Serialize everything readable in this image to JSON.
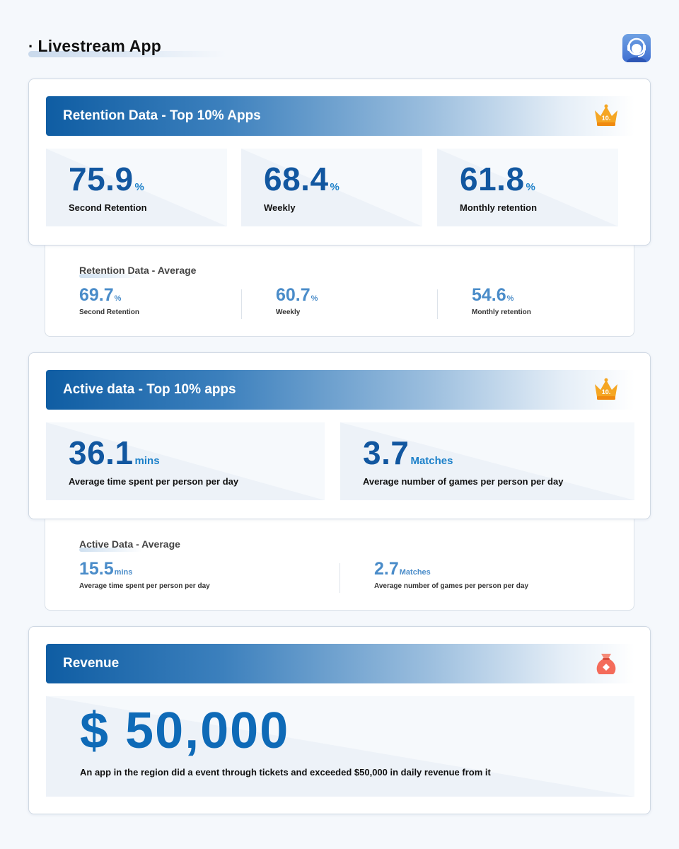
{
  "page": {
    "title": "Livestream App",
    "bullet": "·",
    "logo_icon": "headset-logo-icon"
  },
  "retention_top": {
    "title": "Retention Data - Top 10% Apps",
    "badge_icon": "crown-icon",
    "badge_text": "10.",
    "stats": [
      {
        "value": "75.9",
        "unit": "%",
        "label": "Second Retention"
      },
      {
        "value": "68.4",
        "unit": "%",
        "label": "Weekly"
      },
      {
        "value": "61.8",
        "unit": "%",
        "label": "Monthly retention"
      }
    ]
  },
  "retention_avg": {
    "title": "Retention Data - Average",
    "stats": [
      {
        "value": "69.7",
        "unit": "%",
        "label": "Second Retention"
      },
      {
        "value": "60.7",
        "unit": "%",
        "label": "Weekly"
      },
      {
        "value": "54.6",
        "unit": "%",
        "label": "Monthly retention"
      }
    ]
  },
  "active_top": {
    "title": "Active data - Top 10% apps",
    "badge_icon": "crown-icon",
    "badge_text": "10.",
    "stats": [
      {
        "value": "36.1",
        "unit": "mins",
        "label": "Average time spent per person per day"
      },
      {
        "value": "3.7",
        "unit": "Matches",
        "label": "Average number of games per person per day"
      }
    ]
  },
  "active_avg": {
    "title": "Active Data - Average",
    "stats": [
      {
        "value": "15.5",
        "unit": "mins",
        "label": "Average time spent per person per day"
      },
      {
        "value": "2.7",
        "unit": "Matches",
        "label": "Average number of games per person per day"
      }
    ]
  },
  "revenue": {
    "title": "Revenue",
    "badge_icon": "money-bag-icon",
    "amount": "$ 50,000",
    "description": "An app in the region did a event through tickets and exceeded $50,000 in daily revenue from it"
  },
  "colors": {
    "accent": "#1257a0",
    "accent_light": "#4a8cc9",
    "crown": "#f5a623",
    "bag": "#f46b5a"
  }
}
